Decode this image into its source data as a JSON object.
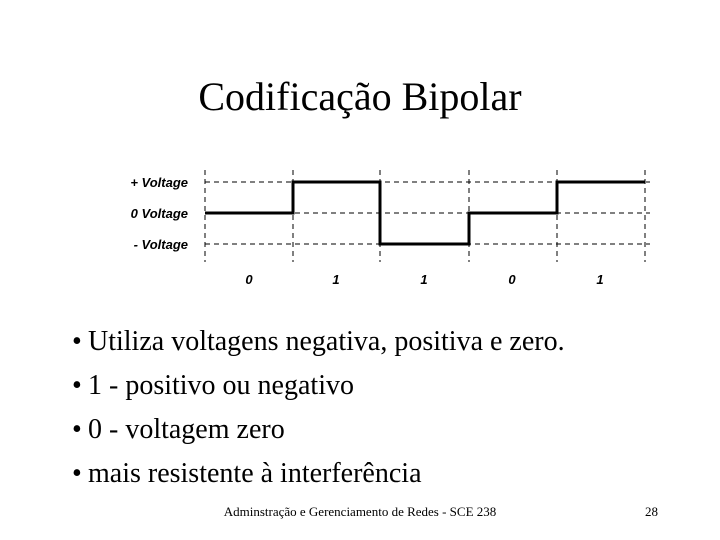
{
  "title": "Codificação Bipolar",
  "diagram": {
    "levels": [
      "+ Voltage",
      "0 Voltage",
      "- Voltage"
    ],
    "bits": [
      "0",
      "1",
      "1",
      "0",
      "1"
    ]
  },
  "bullets": [
    "Utiliza voltagens negativa, positiva e zero.",
    "1 - positivo ou negativo",
    "0 - voltagem zero",
    "mais resistente à interferência"
  ],
  "footer": {
    "text": "Adminstração e Gerenciamento de Redes - SCE 238",
    "page": "28"
  }
}
